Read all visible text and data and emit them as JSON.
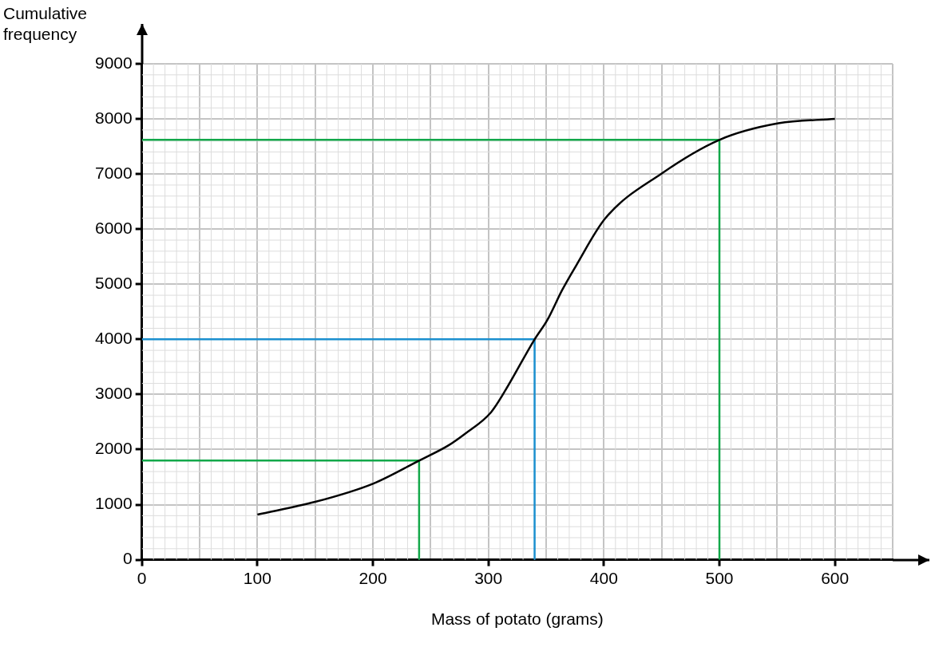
{
  "chart_data": {
    "type": "line",
    "xlabel": "Mass of potato (grams)",
    "ylabel": "Cumulative frequency",
    "xlim": [
      0,
      650
    ],
    "ylim": [
      0,
      9000
    ],
    "xticks": [
      0,
      {
        "value": 50,
        "label": null
      },
      100,
      {
        "value": 150,
        "label": null
      },
      200,
      {
        "value": 250,
        "label": null
      },
      300,
      {
        "value": 350,
        "label": null
      },
      400,
      {
        "value": 450,
        "label": null
      },
      500,
      {
        "value": 550,
        "label": null
      },
      600,
      {
        "value": 650,
        "label": null
      }
    ],
    "yticks": [
      0,
      1000,
      2000,
      3000,
      4000,
      5000,
      6000,
      7000,
      8000,
      9000
    ],
    "grid": true,
    "legend": false,
    "marker": "none",
    "line_style": "solid",
    "series": [
      {
        "color": "#000000",
        "x": [
          100,
          150,
          200,
          240,
          265,
          280,
          302,
          314,
          340,
          351,
          364,
          376,
          401,
          450,
          500,
          551,
          600
        ],
        "values": [
          820,
          1050,
          1380,
          1800,
          2070,
          2290,
          2670,
          3050,
          4000,
          4350,
          4900,
          5340,
          6190,
          7010,
          7620,
          7920,
          8000
        ]
      },
      {
        "color": "#13a84a",
        "x": [
          0,
          240,
          240
        ],
        "values": [
          1800,
          1800,
          0
        ]
      },
      {
        "color": "#1b8fcf",
        "x": [
          0,
          340,
          340
        ],
        "values": [
          4000,
          4000,
          0
        ]
      },
      {
        "color": "#13a84a",
        "x": [
          0,
          500,
          500
        ],
        "values": [
          7620,
          7620,
          0
        ]
      }
    ]
  }
}
